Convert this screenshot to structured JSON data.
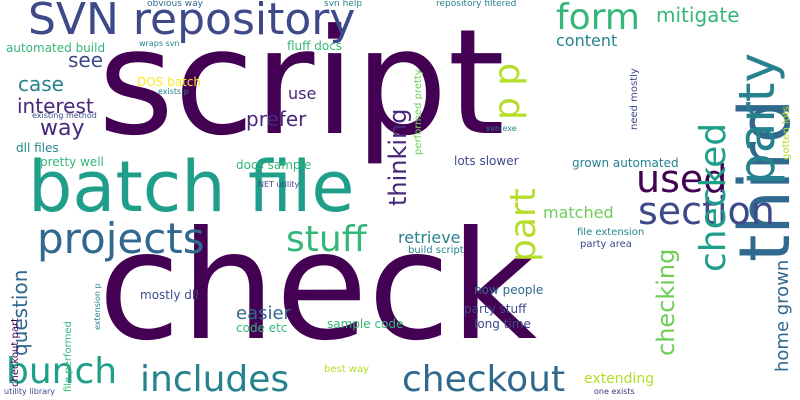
{
  "palette": {
    "dark_purple": "#440154",
    "indigo": "#482878",
    "slate_blue": "#3e4989",
    "steel_blue": "#31688e",
    "teal": "#26828e",
    "sea_green": "#1f9e89",
    "green": "#35b779",
    "light_green": "#6ece58",
    "lime": "#b5de2b",
    "yellow": "#fde725"
  },
  "words": [
    {
      "text": "script"
    },
    {
      "text": "check"
    },
    {
      "text": "batch file"
    },
    {
      "text": "SVN repository"
    },
    {
      "text": "third"
    },
    {
      "text": "party"
    },
    {
      "text": "section"
    },
    {
      "text": "projects"
    },
    {
      "text": "form"
    },
    {
      "text": "used"
    },
    {
      "text": "checkout"
    },
    {
      "text": "includes"
    },
    {
      "text": "bunch"
    },
    {
      "text": "stuff"
    },
    {
      "text": "part"
    },
    {
      "text": "checked"
    },
    {
      "text": "p p"
    },
    {
      "text": "mitigate"
    },
    {
      "text": "checking"
    },
    {
      "text": "thinking"
    },
    {
      "text": "home grown"
    },
    {
      "text": "question"
    },
    {
      "text": "way"
    },
    {
      "text": "interest"
    },
    {
      "text": "case"
    },
    {
      "text": "see"
    },
    {
      "text": "prefer"
    },
    {
      "text": "easier"
    },
    {
      "text": "retrieve"
    },
    {
      "text": "content"
    },
    {
      "text": "extending"
    },
    {
      "text": "matched"
    },
    {
      "text": "use"
    },
    {
      "text": "now people"
    },
    {
      "text": "party stuff"
    },
    {
      "text": "long time"
    },
    {
      "text": "sample code"
    },
    {
      "text": "mostly dll"
    },
    {
      "text": "code etc"
    },
    {
      "text": "fluff docs"
    },
    {
      "text": "automated build"
    },
    {
      "text": "grown automated"
    },
    {
      "text": "lots slower"
    },
    {
      "text": "docs sample"
    },
    {
      "text": "DOS batch"
    },
    {
      "text": "pretty well"
    },
    {
      "text": "dll files"
    },
    {
      "text": "build script"
    },
    {
      "text": "party area"
    },
    {
      "text": "file extension"
    },
    {
      "text": "best way"
    },
    {
      "text": "gotten lots"
    },
    {
      "text": "need mostly"
    },
    {
      "text": "performed pretty"
    },
    {
      "text": "checkout part"
    },
    {
      "text": "file performed"
    },
    {
      "text": "obvious way"
    },
    {
      "text": "svn help"
    },
    {
      "text": "repository filtered"
    },
    {
      "text": "wraps svn"
    },
    {
      "text": "exists p"
    },
    {
      "text": "existing method"
    },
    {
      "text": "svn exe"
    },
    {
      "text": "NET utility"
    },
    {
      "text": "extension p"
    },
    {
      "text": "utility library"
    },
    {
      "text": "one exists"
    }
  ]
}
